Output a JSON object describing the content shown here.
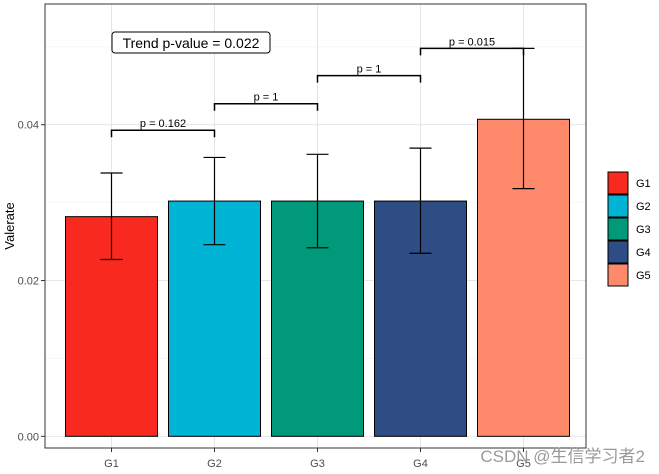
{
  "chart_data": {
    "type": "bar",
    "categories": [
      "G1",
      "G2",
      "G3",
      "G4",
      "G5"
    ],
    "values": [
      0.0282,
      0.0302,
      0.0302,
      0.0302,
      0.0407
    ],
    "error_low": [
      0.0227,
      0.0246,
      0.0242,
      0.0235,
      0.0318
    ],
    "error_high": [
      0.0338,
      0.0358,
      0.0362,
      0.037,
      0.0498
    ],
    "colors": [
      "#F8291F",
      "#00B4D5",
      "#00997A",
      "#2D4D84",
      "#FF8A6B"
    ],
    "title": "",
    "xlabel": "",
    "ylabel": "Valerate",
    "ylim": [
      -0.0015,
      0.0555
    ],
    "yticks": [
      0.0,
      0.02,
      0.04
    ],
    "ytick_labels": [
      "0.00",
      "0.02",
      "0.04"
    ],
    "grid": true,
    "legend": {
      "position": "right",
      "entries": [
        "G1",
        "G2",
        "G3",
        "G4",
        "G5"
      ]
    },
    "comparisons": [
      {
        "from": "G1",
        "to": "G2",
        "y": 0.0393,
        "label": "p = 0.162"
      },
      {
        "from": "G2",
        "to": "G3",
        "y": 0.0427,
        "label": "p = 1"
      },
      {
        "from": "G3",
        "to": "G4",
        "y": 0.0463,
        "label": "p = 1"
      },
      {
        "from": "G4",
        "to": "G5",
        "y": 0.0498,
        "label": "p = 0.015"
      }
    ],
    "annotation": {
      "text": "Trend p-value = 0.022"
    }
  },
  "watermark": "CSDN @生信学习者2"
}
